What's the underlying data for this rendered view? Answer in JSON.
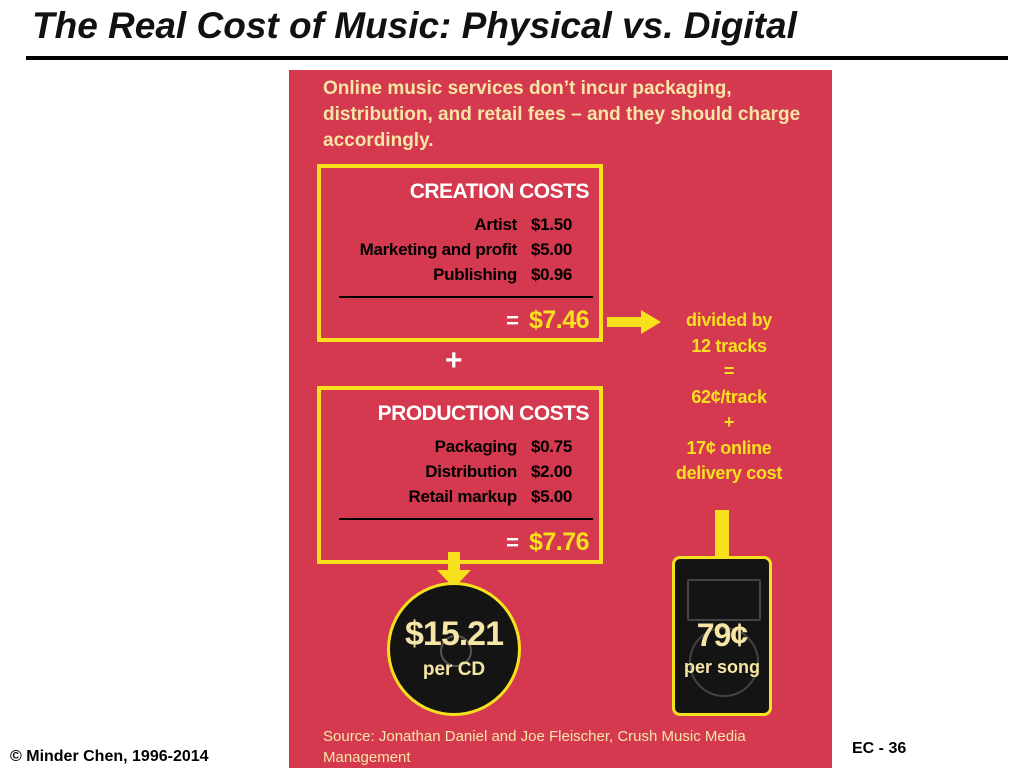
{
  "slide": {
    "title": "The Real Cost of Music: Physical vs. Digital",
    "copyright": "© Minder Chen, 1996-2014",
    "page_number": "EC - 36"
  },
  "infographic": {
    "intro": "Online music services don’t incur packaging, distribution, and retail fees – and they should charge accordingly.",
    "creation": {
      "title": "CREATION COSTS",
      "rows": [
        {
          "label": "Artist",
          "amount": "$1.50"
        },
        {
          "label": "Marketing and profit",
          "amount": "$5.00"
        },
        {
          "label": "Publishing",
          "amount": "$0.96"
        }
      ],
      "equals": "=",
      "total": "$7.46"
    },
    "plus": "+",
    "production": {
      "title": "PRODUCTION COSTS",
      "rows": [
        {
          "label": "Packaging",
          "amount": "$0.75"
        },
        {
          "label": "Distribution",
          "amount": "$2.00"
        },
        {
          "label": "Retail markup",
          "amount": "$5.00"
        }
      ],
      "equals": "=",
      "total": "$7.76"
    },
    "calculation": [
      "divided by",
      "12 tracks",
      "=",
      "62¢/track",
      "+",
      "17¢ online",
      "delivery cost"
    ],
    "cd": {
      "price": "$15.21",
      "unit": "per CD"
    },
    "song": {
      "price": "79¢",
      "unit": "per song"
    },
    "source": "Source: Jonathan Daniel and Joe Fleischer, Crush Music Media Management"
  },
  "colors": {
    "panel_background": "#d4394f",
    "accent_yellow": "#f7e11d",
    "text_cream": "#f6e6a6"
  }
}
